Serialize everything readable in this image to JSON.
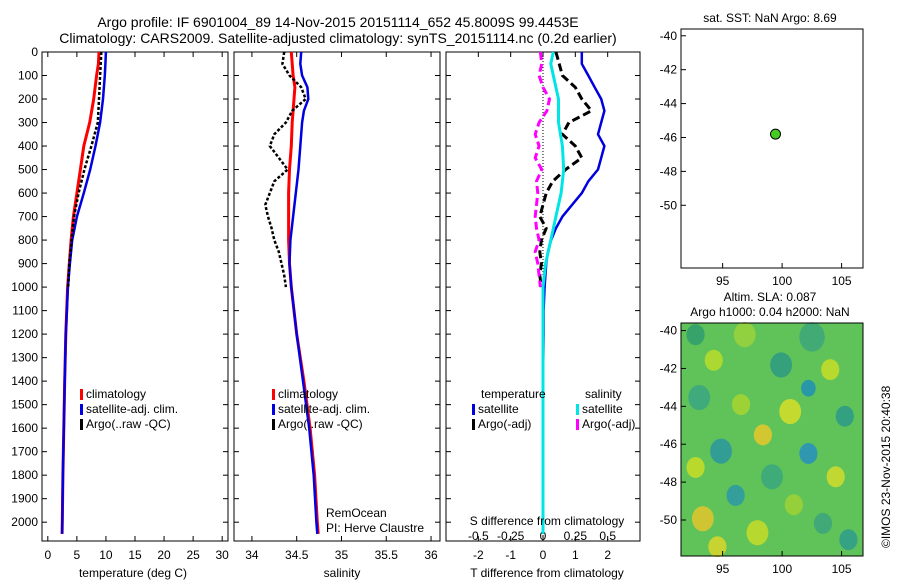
{
  "header": {
    "title_line1": "Argo profile: IF 6901004_89 14-Nov-2015 20151114_652 45.8009S 99.4453E",
    "title_line2": "Climatology: CARS2009. Satellite-adjusted climatology: synTS_20151114.nc (0.2d earlier)"
  },
  "colors": {
    "climatology": "#ff0000",
    "satellite": "#0000e0",
    "argo": "#000000",
    "salinity_satellite": "#00e5e5",
    "salinity_argo": "#ff00ff",
    "float_marker": "#44cc22"
  },
  "chart_data": [
    {
      "id": "temperature",
      "type": "line",
      "xlabel": "temperature (deg C)",
      "xlim": [
        -1,
        31
      ],
      "ylim": [
        2080,
        0
      ],
      "xticks": [
        0,
        5,
        10,
        15,
        20,
        25,
        30
      ],
      "yticks": [
        0,
        100,
        200,
        300,
        400,
        500,
        600,
        700,
        800,
        900,
        1000,
        1100,
        1200,
        1300,
        1400,
        1500,
        1600,
        1700,
        1800,
        1900,
        2000
      ],
      "legend": [
        "climatology",
        "satellite-adj. clim.",
        "Argo(..raw -QC)"
      ],
      "series": [
        {
          "name": "climatology",
          "depth": [
            0,
            50,
            100,
            200,
            300,
            400,
            500,
            600,
            700,
            800,
            900,
            1000,
            1200,
            1400,
            1600,
            1800,
            2000,
            2050
          ],
          "values": [
            8.8,
            8.7,
            8.4,
            7.9,
            7.2,
            6.2,
            5.6,
            5.0,
            4.4,
            4.0,
            3.7,
            3.4,
            3.1,
            2.9,
            2.75,
            2.6,
            2.5,
            2.45
          ]
        },
        {
          "name": "satellite-adj. clim.",
          "depth": [
            0,
            50,
            100,
            200,
            300,
            400,
            500,
            600,
            700,
            800,
            900,
            1000,
            1200,
            1400,
            1600,
            1800,
            2000,
            2050
          ],
          "values": [
            10.0,
            9.9,
            9.8,
            9.5,
            9.0,
            8.2,
            7.3,
            6.2,
            5.0,
            4.2,
            3.8,
            3.45,
            3.1,
            2.9,
            2.75,
            2.6,
            2.5,
            2.45
          ]
        },
        {
          "name": "Argo(..raw -QC)",
          "depth": [
            0,
            50,
            100,
            200,
            300,
            400,
            500,
            600,
            700,
            800,
            900,
            1000
          ],
          "values": [
            9.2,
            9.1,
            9.0,
            8.8,
            8.6,
            7.5,
            6.3,
            5.3,
            4.5,
            4.1,
            3.7,
            3.5
          ]
        }
      ]
    },
    {
      "id": "salinity",
      "type": "line",
      "xlabel": "salinity",
      "xlim": [
        33.8,
        36.1
      ],
      "ylim": [
        2080,
        0
      ],
      "xticks": [
        34,
        34.5,
        35,
        35.5,
        36
      ],
      "legend": [
        "climatology",
        "satellite-adj. clim.",
        "Argo(..raw -QC)"
      ],
      "annotation": [
        "RemOcean",
        "PI: Herve Claustre"
      ],
      "series": [
        {
          "name": "climatology",
          "depth": [
            0,
            50,
            100,
            150,
            200,
            300,
            400,
            500,
            600,
            700,
            800,
            900,
            1000,
            1200,
            1400,
            1600,
            1800,
            2000,
            2050
          ],
          "values": [
            34.44,
            34.45,
            34.46,
            34.48,
            34.47,
            34.45,
            34.44,
            34.42,
            34.41,
            34.41,
            34.41,
            34.42,
            34.44,
            34.5,
            34.58,
            34.65,
            34.7,
            34.73,
            34.74
          ]
        },
        {
          "name": "satellite-adj. clim.",
          "depth": [
            0,
            50,
            100,
            150,
            200,
            250,
            300,
            400,
            500,
            600,
            700,
            800,
            900,
            1000,
            1200,
            1400,
            1600,
            1800,
            2000,
            2050
          ],
          "values": [
            34.55,
            34.54,
            34.56,
            34.62,
            34.63,
            34.58,
            34.56,
            34.54,
            34.52,
            34.49,
            34.46,
            34.43,
            34.42,
            34.44,
            34.5,
            34.57,
            34.64,
            34.69,
            34.72,
            34.73
          ]
        },
        {
          "name": "Argo(..raw -QC)",
          "depth": [
            0,
            50,
            100,
            150,
            200,
            250,
            300,
            350,
            400,
            450,
            500,
            550,
            600,
            650,
            700,
            750,
            800,
            850,
            900,
            950,
            1000
          ],
          "values": [
            34.36,
            34.34,
            34.42,
            34.55,
            34.6,
            34.45,
            34.38,
            34.25,
            34.2,
            34.3,
            34.4,
            34.25,
            34.2,
            34.15,
            34.18,
            34.22,
            34.25,
            34.3,
            34.33,
            34.36,
            34.38
          ]
        }
      ]
    },
    {
      "id": "difference",
      "type": "line",
      "xlabel": "T difference from climatology",
      "xlabel_top": "S difference from climatology",
      "xlim": [
        -3,
        3
      ],
      "ylim": [
        2080,
        0
      ],
      "xticks": [
        -2,
        -1,
        0,
        1,
        2
      ],
      "xticks_top": [
        -0.5,
        -0.25,
        0,
        0.25,
        0.5
      ],
      "xticks_top_labels": [
        "-0.5",
        "-0.25",
        "0",
        "0.25",
        "0.5"
      ],
      "legend_groups": [
        {
          "title": "temperature",
          "items": [
            "satellite",
            "Argo(-adj)"
          ]
        },
        {
          "title": "salinity",
          "items": [
            "satellite",
            "Argo(-adj)"
          ]
        }
      ],
      "series": [
        {
          "name": "temperature satellite",
          "depth": [
            0,
            50,
            100,
            150,
            200,
            250,
            300,
            350,
            400,
            450,
            500,
            550,
            600,
            650,
            700,
            750,
            800,
            850,
            900,
            1000,
            1100,
            1200,
            1400,
            1600,
            1800,
            2000,
            2050
          ],
          "values": [
            1.2,
            1.2,
            1.4,
            1.6,
            1.8,
            1.9,
            1.8,
            1.7,
            1.9,
            1.8,
            1.7,
            1.4,
            1.2,
            0.9,
            0.6,
            0.4,
            0.25,
            0.15,
            0.1,
            0.05,
            0.02,
            0.02,
            0.0,
            0.0,
            0.0,
            0.0,
            0.0
          ]
        },
        {
          "name": "temperature Argo(-adj)",
          "depth": [
            0,
            50,
            100,
            150,
            200,
            250,
            300,
            350,
            400,
            450,
            500,
            550,
            600,
            650,
            700,
            750,
            800,
            850,
            900,
            950,
            1000
          ],
          "values": [
            0.4,
            0.5,
            0.6,
            1.0,
            1.2,
            1.5,
            0.8,
            0.6,
            1.0,
            1.2,
            0.7,
            0.3,
            0.1,
            0.0,
            -0.1,
            0.1,
            -0.05,
            -0.1,
            -0.05,
            -0.1,
            -0.05
          ]
        },
        {
          "name": "salinity satellite",
          "depth": [
            0,
            50,
            100,
            150,
            200,
            300,
            400,
            500,
            600,
            700,
            800,
            900,
            1000,
            1200,
            1400,
            1600,
            1800,
            2000,
            2050
          ],
          "values": [
            0.08,
            0.06,
            0.08,
            0.1,
            0.12,
            0.12,
            0.15,
            0.16,
            0.14,
            0.1,
            0.06,
            0.02,
            0.0,
            0.0,
            0.0,
            0.0,
            0.0,
            0.0,
            0.0
          ]
        },
        {
          "name": "salinity Argo(-adj)",
          "depth": [
            0,
            50,
            100,
            150,
            200,
            250,
            300,
            350,
            400,
            450,
            500,
            550,
            600,
            650,
            700,
            750,
            800,
            850,
            900,
            950,
            1000
          ],
          "values": [
            -0.02,
            -0.01,
            -0.03,
            0.0,
            0.05,
            0.03,
            -0.03,
            -0.06,
            -0.03,
            -0.06,
            -0.01,
            -0.05,
            -0.04,
            -0.05,
            -0.06,
            -0.05,
            -0.03,
            -0.06,
            -0.04,
            -0.03,
            -0.02
          ]
        }
      ]
    },
    {
      "id": "sst_map",
      "type": "scatter",
      "title": "sat. SST: NaN Argo: 8.69",
      "xlim": [
        91.5,
        106.8
      ],
      "ylim": [
        -53.7,
        -39.6
      ],
      "xticks": [
        95,
        100,
        105
      ],
      "yticks": [
        -40,
        -42,
        -44,
        -46,
        -48,
        -50
      ],
      "points": [
        {
          "x": 99.4453,
          "y": -45.8009
        }
      ]
    },
    {
      "id": "sla_map",
      "type": "heatmap",
      "title_line1": "Altim. SLA: 0.087",
      "title_line2": "Argo h1000: 0.04 h2000: NaN",
      "xlim": [
        91.5,
        106.8
      ],
      "ylim": [
        -51.9,
        -39.6
      ],
      "xticks": [
        95,
        100,
        105
      ],
      "yticks": [
        -40,
        -42,
        -44,
        -46,
        -48,
        -50
      ],
      "credit": "©IMOS 23-Nov-2015 20:40:38"
    }
  ]
}
